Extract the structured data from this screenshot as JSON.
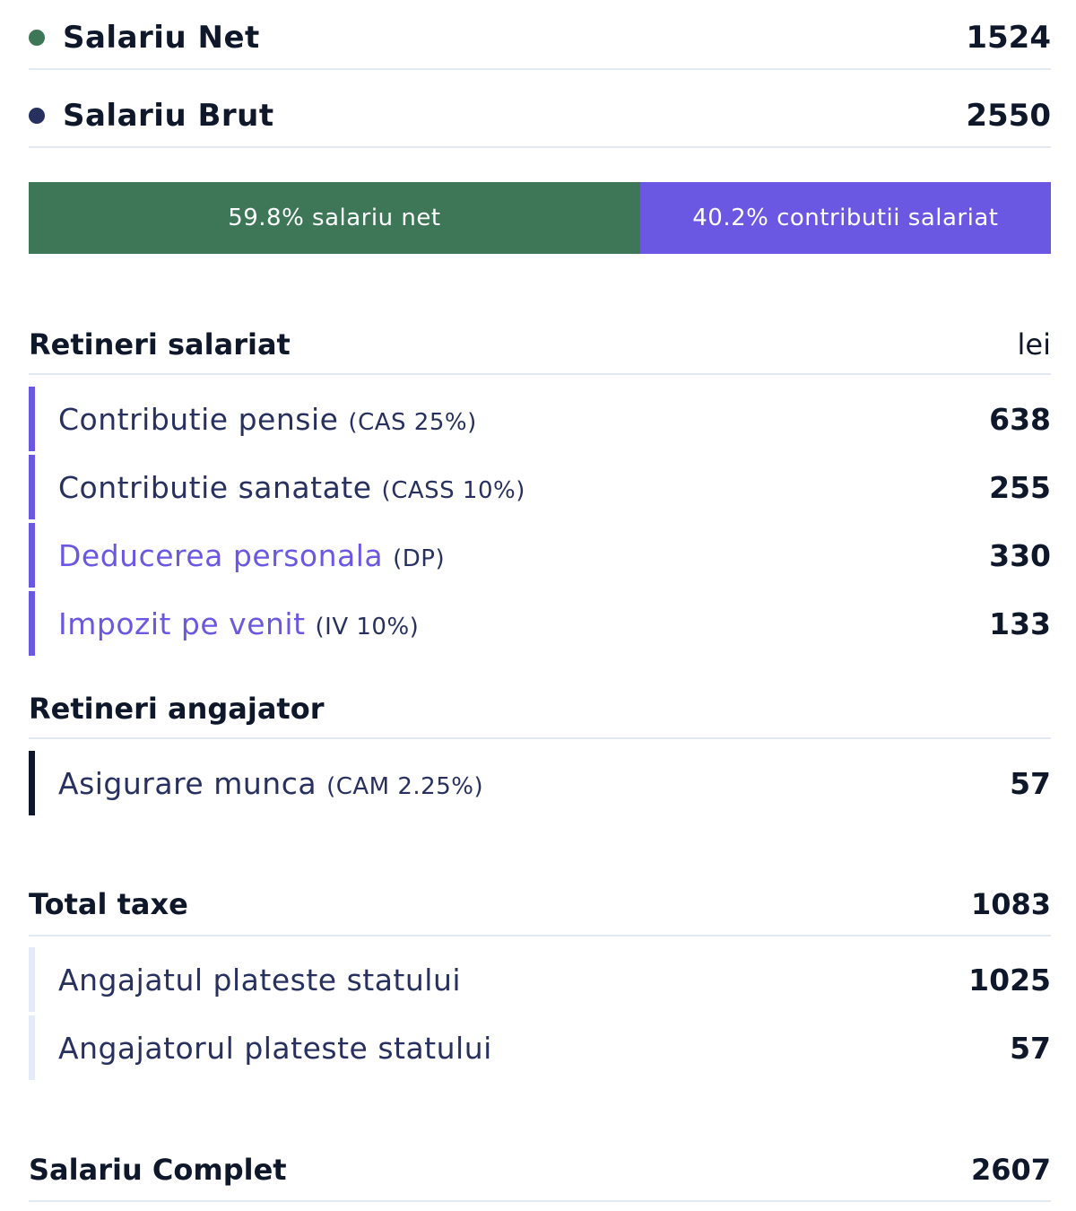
{
  "summary": {
    "net": {
      "label": "Salariu Net",
      "value": "1524",
      "color": "#3d7757"
    },
    "gross": {
      "label": "Salariu Brut",
      "value": "2550",
      "color": "#27305e"
    }
  },
  "split_bar": {
    "net": {
      "text": "59.8% salariu net",
      "fraction": 0.598,
      "color": "#3d7757"
    },
    "contrib": {
      "text": "40.2% contributii salariat",
      "fraction": 0.402,
      "color": "#6a58e2"
    }
  },
  "employee_deductions": {
    "title": "Retineri salariat",
    "unit": "lei",
    "items": [
      {
        "label": "Contributie pensie",
        "tag": "(CAS 25%)",
        "value": "638"
      },
      {
        "label": "Contributie sanatate",
        "tag": "(CASS 10%)",
        "value": "255"
      },
      {
        "label": "Deducerea personala",
        "tag": "(DP)",
        "value": "330"
      },
      {
        "label": "Impozit pe venit",
        "tag": "(IV 10%)",
        "value": "133"
      }
    ]
  },
  "employer_deductions": {
    "title": "Retineri angajator",
    "items": [
      {
        "label": "Asigurare munca",
        "tag": "(CAM 2.25%)",
        "value": "57"
      }
    ]
  },
  "total_taxes": {
    "title": "Total taxe",
    "value": "1083",
    "items": [
      {
        "label": "Angajatul plateste statului",
        "value": "1025"
      },
      {
        "label": "Angajatorul plateste statului",
        "value": "57"
      }
    ]
  },
  "complete": {
    "label": "Salariu Complet",
    "value": "2607"
  }
}
